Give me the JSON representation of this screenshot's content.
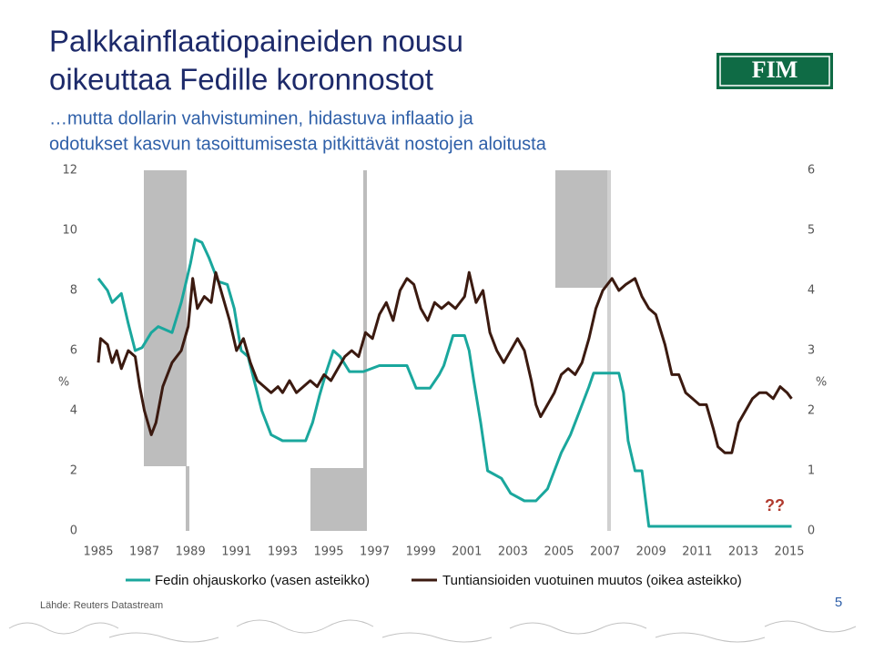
{
  "slide": {
    "title_lines": [
      "Palkkainflaatiopaineiden nousu",
      "oikeuttaa Fedille koronnostot"
    ],
    "subtitle_lines": [
      "…mutta dollarin vahvistuminen, hidastuva inflaatio ja",
      "odotukset kasvun tasoittumisesta pitkittävät nostojen aloitusta"
    ],
    "logo": "FIM",
    "source": "Lähde: Reuters Datastream",
    "page_number": 5
  },
  "chart_data": {
    "type": "line",
    "y_label": "%",
    "y2_label": "%",
    "annotation": "??",
    "xlim": [
      1985,
      2015
    ],
    "xticks": [
      1985,
      1987,
      1989,
      1991,
      1993,
      1995,
      1997,
      1999,
      2001,
      2003,
      2005,
      2007,
      2009,
      2011,
      2013,
      2015
    ],
    "ylim": [
      0,
      12
    ],
    "yticks": [
      0,
      2,
      4,
      6,
      8,
      10,
      12
    ],
    "y2lim": [
      0,
      6
    ],
    "y2ticks": [
      0,
      1,
      2,
      3,
      4,
      5,
      6
    ],
    "series": [
      {
        "name": "Fedin ohjauskorko (vasen asteikko)",
        "color": "#1aa79d",
        "axis": "y",
        "x": [
          1985.0,
          1985.4,
          1985.6,
          1986.0,
          1986.3,
          1986.6,
          1986.9,
          1987.3,
          1987.6,
          1988.2,
          1988.6,
          1989.0,
          1989.2,
          1989.5,
          1989.8,
          1990.2,
          1990.6,
          1990.9,
          1991.2,
          1991.5,
          1991.8,
          1992.1,
          1992.5,
          1993.0,
          1993.6,
          1994.0,
          1994.3,
          1994.6,
          1994.9,
          1995.2,
          1995.5,
          1995.9,
          1996.5,
          1997.2,
          1997.8,
          1998.4,
          1998.8,
          1999.4,
          1999.8,
          2000.0,
          2000.4,
          2000.9,
          2001.1,
          2001.3,
          2001.6,
          2001.9,
          2002.5,
          2002.9,
          2003.5,
          2004.0,
          2004.5,
          2004.8,
          2005.1,
          2005.5,
          2005.9,
          2006.3,
          2006.5,
          2007.0,
          2007.6,
          2007.8,
          2008.0,
          2008.3,
          2008.6,
          2008.9,
          2010.0,
          2012.0,
          2014.0,
          2015.1
        ],
        "values": [
          8.4,
          8.0,
          7.6,
          7.9,
          6.9,
          6.0,
          6.1,
          6.6,
          6.8,
          6.6,
          7.6,
          8.9,
          9.7,
          9.6,
          9.1,
          8.3,
          8.2,
          7.4,
          6.0,
          5.8,
          4.9,
          4.0,
          3.2,
          3.0,
          3.0,
          3.0,
          3.6,
          4.5,
          5.3,
          6.0,
          5.8,
          5.3,
          5.3,
          5.5,
          5.5,
          5.5,
          4.75,
          4.75,
          5.2,
          5.5,
          6.5,
          6.5,
          6.0,
          5.0,
          3.6,
          2.0,
          1.75,
          1.25,
          1.0,
          1.0,
          1.4,
          2.0,
          2.6,
          3.2,
          4.0,
          4.8,
          5.25,
          5.25,
          5.25,
          4.6,
          3.0,
          2.0,
          2.0,
          0.15,
          0.15,
          0.15,
          0.15,
          0.15
        ]
      },
      {
        "name": "Tuntiansioiden vuotuinen muutos (oikea asteikko)",
        "color": "#3b1a10",
        "axis": "y2",
        "x": [
          1985.0,
          1985.1,
          1985.4,
          1985.6,
          1985.8,
          1986.0,
          1986.3,
          1986.6,
          1986.8,
          1987.0,
          1987.3,
          1987.5,
          1987.8,
          1988.2,
          1988.6,
          1988.9,
          1989.1,
          1989.3,
          1989.6,
          1989.9,
          1990.1,
          1990.4,
          1990.7,
          1991.0,
          1991.3,
          1991.6,
          1991.9,
          1992.2,
          1992.5,
          1992.8,
          1993.0,
          1993.3,
          1993.6,
          1993.9,
          1994.2,
          1994.5,
          1994.8,
          1995.1,
          1995.4,
          1995.7,
          1996.0,
          1996.3,
          1996.6,
          1996.9,
          1997.2,
          1997.5,
          1997.8,
          1998.1,
          1998.4,
          1998.7,
          1999.0,
          1999.3,
          1999.6,
          1999.9,
          2000.2,
          2000.5,
          2000.9,
          2001.1,
          2001.4,
          2001.7,
          2002.0,
          2002.3,
          2002.6,
          2002.9,
          2003.2,
          2003.5,
          2003.8,
          2004.0,
          2004.2,
          2004.5,
          2004.8,
          2005.1,
          2005.4,
          2005.7,
          2006.0,
          2006.3,
          2006.6,
          2006.9,
          2007.3,
          2007.6,
          2007.9,
          2008.3,
          2008.6,
          2008.9,
          2009.2,
          2009.6,
          2009.9,
          2010.2,
          2010.5,
          2010.8,
          2011.1,
          2011.4,
          2011.7,
          2011.9,
          2012.2,
          2012.5,
          2012.8,
          2013.1,
          2013.4,
          2013.7,
          2014.0,
          2014.3,
          2014.6,
          2014.9,
          2015.1
        ],
        "values": [
          2.8,
          3.2,
          3.1,
          2.8,
          3.0,
          2.7,
          3.0,
          2.9,
          2.4,
          2.0,
          1.6,
          1.8,
          2.4,
          2.8,
          3.0,
          3.4,
          4.2,
          3.7,
          3.9,
          3.8,
          4.3,
          3.9,
          3.5,
          3.0,
          3.2,
          2.8,
          2.5,
          2.4,
          2.3,
          2.4,
          2.3,
          2.5,
          2.3,
          2.4,
          2.5,
          2.4,
          2.6,
          2.5,
          2.7,
          2.9,
          3.0,
          2.9,
          3.3,
          3.2,
          3.6,
          3.8,
          3.5,
          4.0,
          4.2,
          4.1,
          3.7,
          3.5,
          3.8,
          3.7,
          3.8,
          3.7,
          3.9,
          4.3,
          3.8,
          4.0,
          3.3,
          3.0,
          2.8,
          3.0,
          3.2,
          3.0,
          2.5,
          2.1,
          1.9,
          2.1,
          2.3,
          2.6,
          2.7,
          2.6,
          2.8,
          3.2,
          3.7,
          4.0,
          4.2,
          4.0,
          4.1,
          4.2,
          3.9,
          3.7,
          3.6,
          3.1,
          2.6,
          2.6,
          2.3,
          2.2,
          2.1,
          2.1,
          1.7,
          1.4,
          1.3,
          1.3,
          1.8,
          2.0,
          2.2,
          2.3,
          2.3,
          2.2,
          2.4,
          2.3,
          2.2
        ]
      }
    ]
  }
}
